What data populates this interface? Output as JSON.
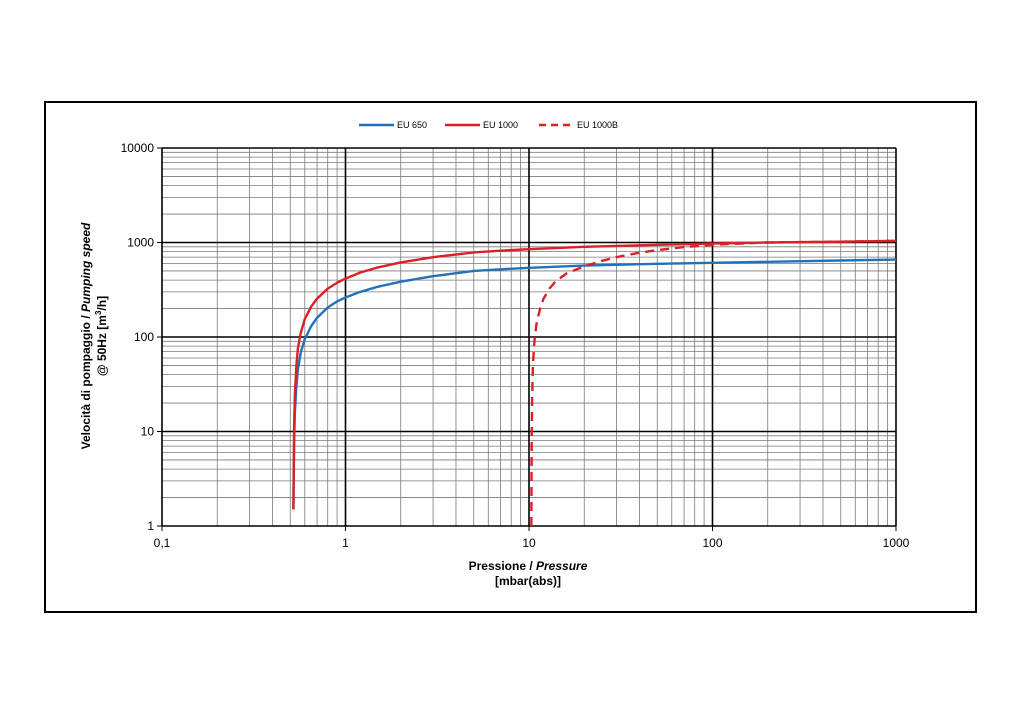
{
  "chart_data": {
    "type": "line",
    "title": "",
    "x_scale": "log",
    "y_scale": "log",
    "xlim": [
      0.1,
      1000
    ],
    "ylim": [
      1,
      10000
    ],
    "grid": true,
    "legend_position": "top-center",
    "xlabel": {
      "main": "Pressione / ",
      "italic": "Pressure",
      "unit": "[mbar(abs)]"
    },
    "ylabel": {
      "main": "Velocità di pompaggio / ",
      "italic": "Pumping speed",
      "line2_prefix": "@ 50Hz [m",
      "line2_sup": "3",
      "line2_suffix": "/h]"
    },
    "x_tick_labels": [
      "0,1",
      "1",
      "10",
      "100",
      "1000"
    ],
    "y_tick_labels": [
      "1",
      "10",
      "100",
      "1000",
      "10000"
    ],
    "series": [
      {
        "name": "EU 650",
        "color": "#2272b8",
        "dash": "solid",
        "x": [
          0.52,
          0.525,
          0.53,
          0.54,
          0.55,
          0.57,
          0.6,
          0.65,
          0.7,
          0.8,
          0.9,
          1,
          1.2,
          1.5,
          2,
          3,
          5,
          7,
          10,
          20,
          50,
          100,
          200,
          500,
          1000
        ],
        "y": [
          1.5,
          8,
          16,
          30,
          45,
          68,
          95,
          130,
          160,
          205,
          238,
          262,
          300,
          340,
          385,
          440,
          500,
          520,
          540,
          570,
          595,
          610,
          625,
          645,
          660
        ]
      },
      {
        "name": "EU 1000",
        "color": "#dd1f26",
        "dash": "solid",
        "x": [
          0.52,
          0.525,
          0.53,
          0.54,
          0.55,
          0.57,
          0.6,
          0.65,
          0.7,
          0.8,
          0.9,
          1,
          1.2,
          1.5,
          2,
          3,
          5,
          7,
          10,
          20,
          50,
          100,
          200,
          500,
          1000
        ],
        "y": [
          1.5,
          12,
          25,
          50,
          75,
          110,
          155,
          210,
          255,
          325,
          375,
          415,
          480,
          545,
          615,
          700,
          785,
          820,
          850,
          900,
          945,
          975,
          1000,
          1020,
          1040
        ]
      },
      {
        "name": "EU 1000B",
        "color": "#dd1f26",
        "dash": "dashed",
        "x": [
          10.3,
          10.35,
          10.4,
          10.5,
          10.7,
          11,
          11.5,
          12,
          13,
          14,
          16,
          20,
          25,
          30,
          40,
          50,
          70,
          100,
          150,
          200,
          500,
          1000
        ],
        "y": [
          1,
          10,
          22,
          50,
          90,
          140,
          200,
          255,
          330,
          390,
          470,
          560,
          640,
          700,
          780,
          830,
          895,
          945,
          980,
          1000,
          1020,
          1040
        ]
      }
    ]
  }
}
